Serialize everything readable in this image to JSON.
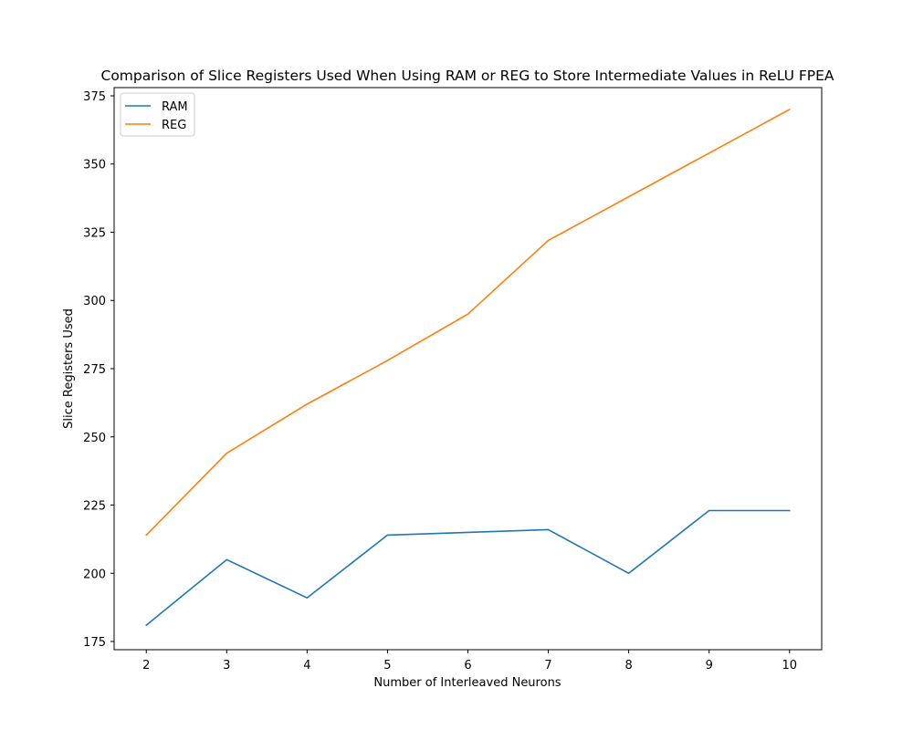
{
  "chart_data": {
    "type": "line",
    "title": "Comparison of Slice Registers Used When Using RAM or REG to Store Intermediate Values in ReLU FPEA",
    "xlabel": "Number of Interleaved Neurons",
    "ylabel": "Slice Registers Used",
    "x": [
      2,
      3,
      4,
      5,
      6,
      7,
      8,
      9,
      10
    ],
    "xlim": [
      1.6,
      10.4
    ],
    "ylim": [
      172,
      378
    ],
    "xticks": [
      2,
      3,
      4,
      5,
      6,
      7,
      8,
      9,
      10
    ],
    "yticks": [
      175,
      200,
      225,
      250,
      275,
      300,
      325,
      350,
      375
    ],
    "grid": false,
    "legend_position": "top-left",
    "series": [
      {
        "name": "RAM",
        "color": "#1f77b4",
        "values": [
          181,
          205,
          191,
          214,
          215,
          216,
          200,
          223,
          223
        ]
      },
      {
        "name": "REG",
        "color": "#ff7f0e",
        "values": [
          214,
          244,
          262,
          278,
          295,
          322,
          338,
          354,
          370
        ]
      }
    ]
  }
}
